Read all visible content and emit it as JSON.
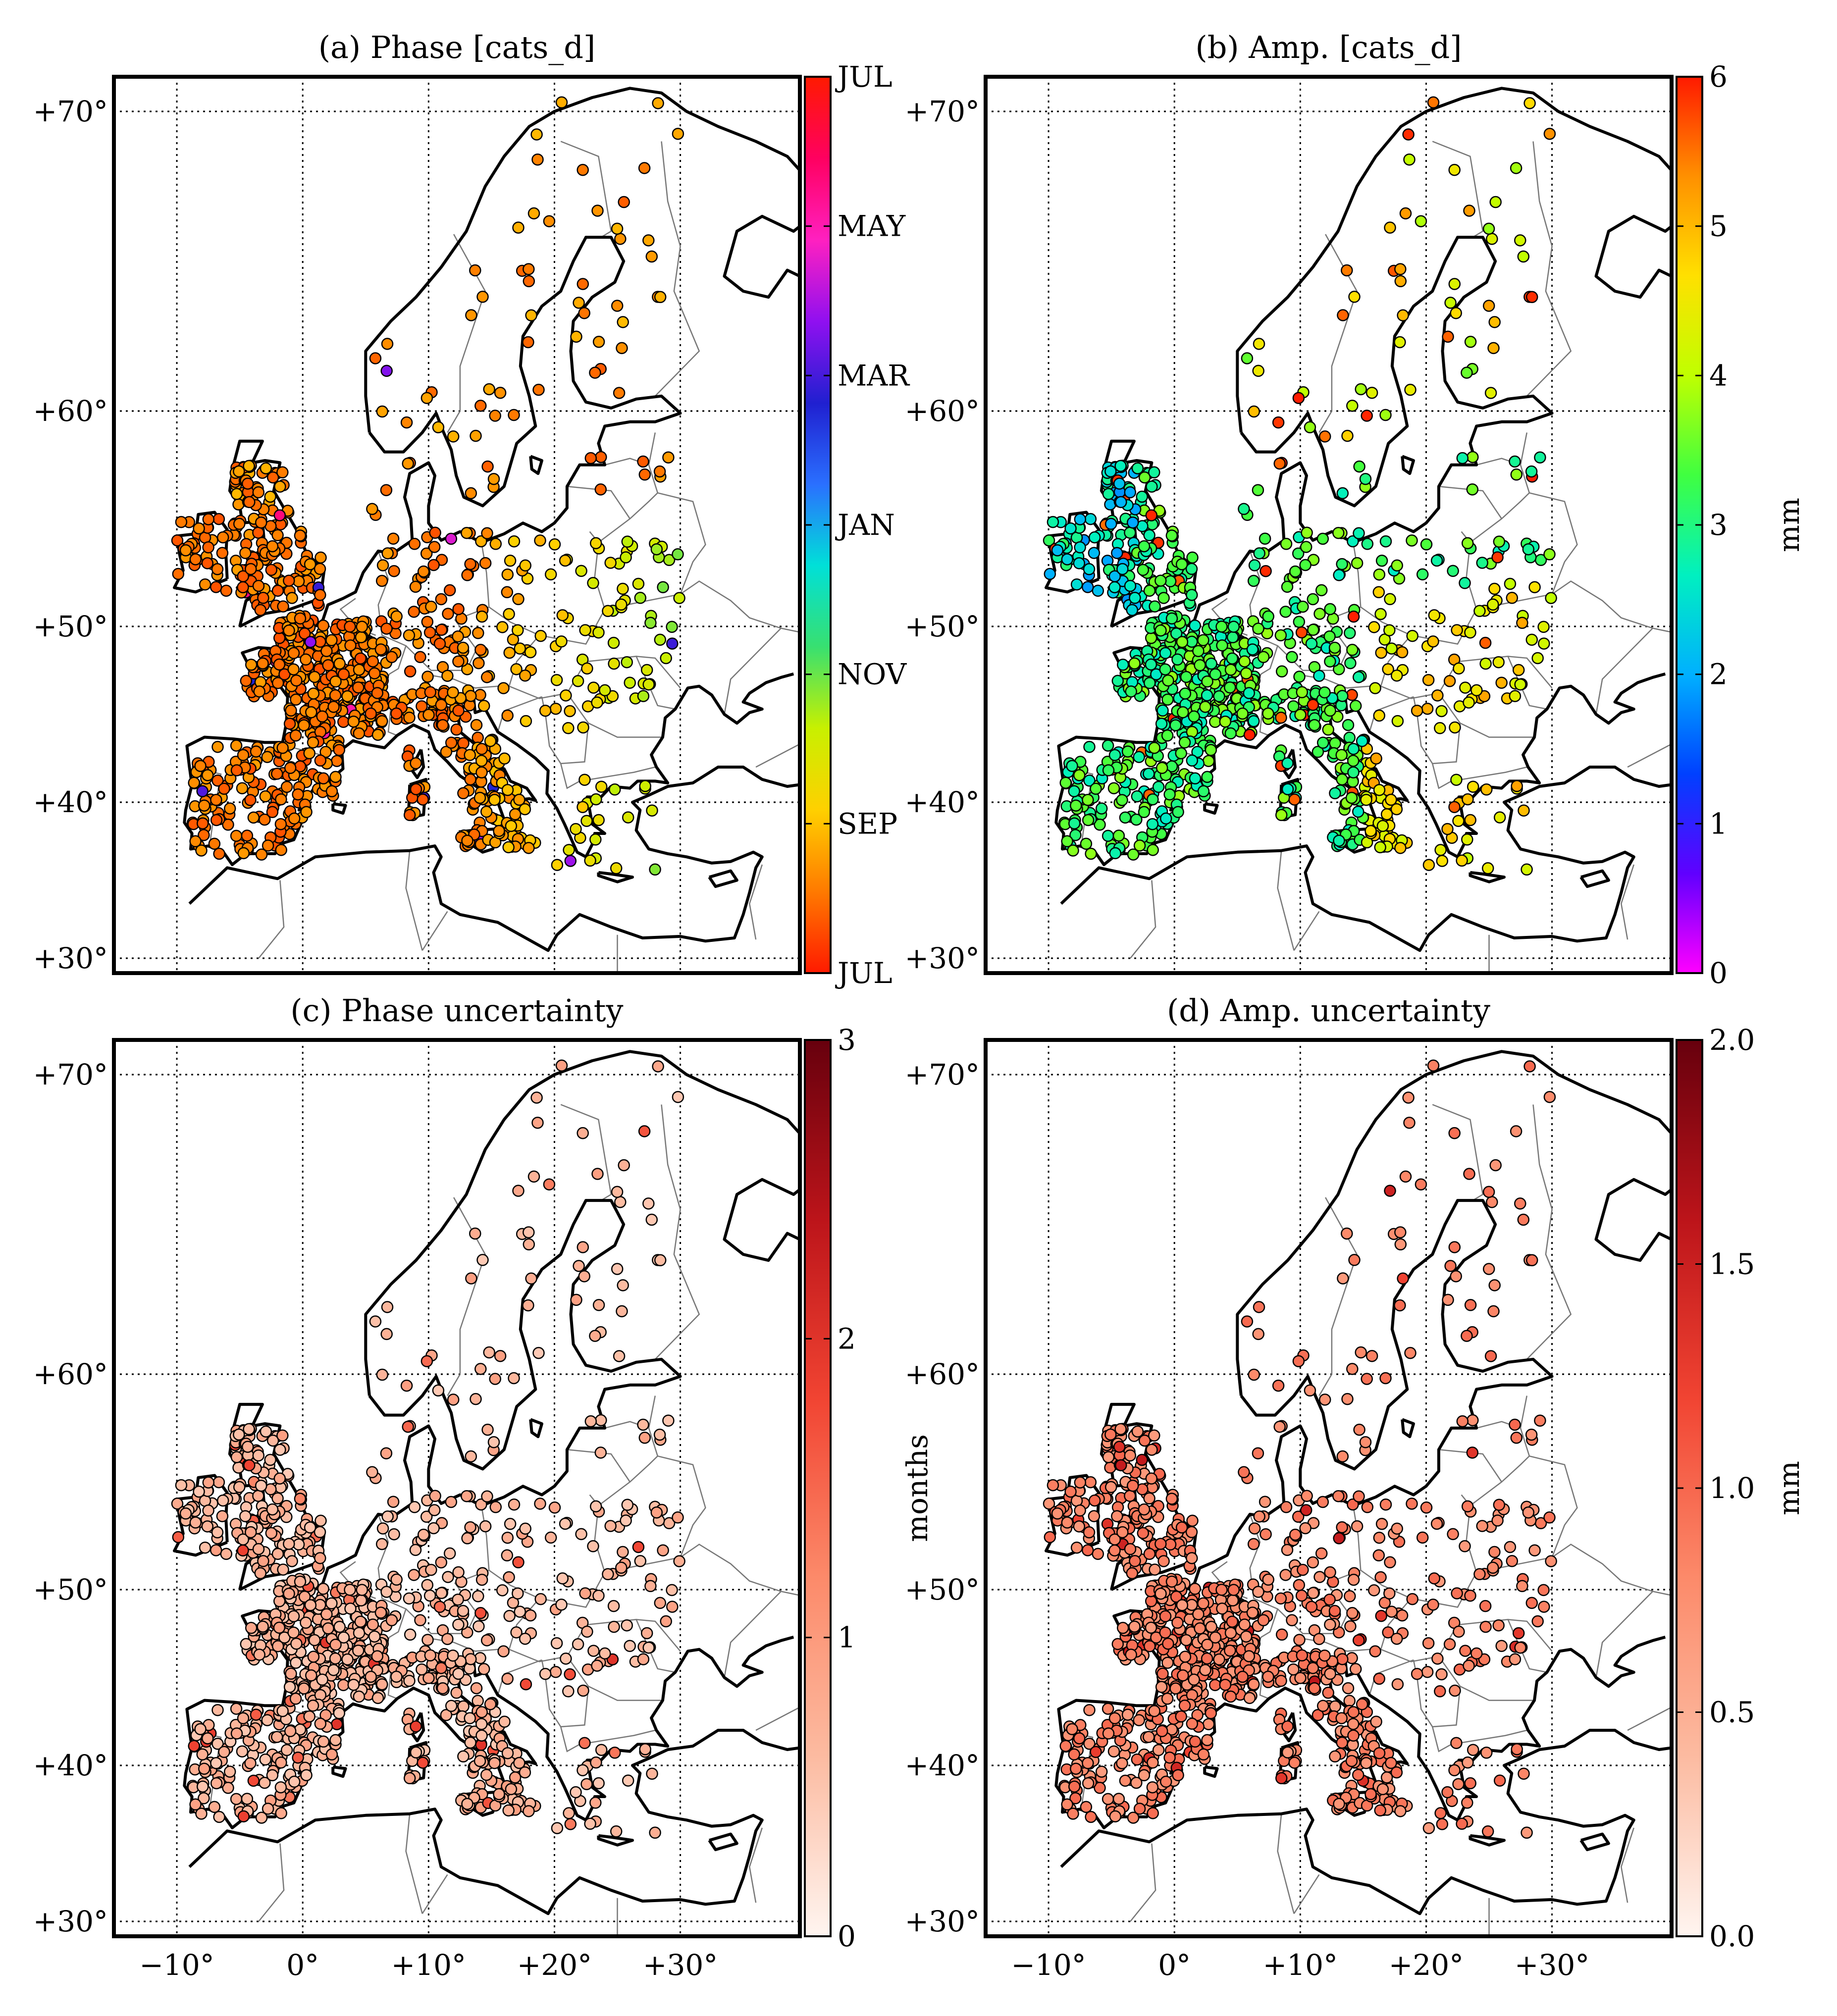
{
  "panels": [
    {
      "id": "a",
      "title": "(a) Phase [cats_d]",
      "colorbar": {
        "type": "cyclic",
        "ticks": [
          "JUL",
          "MAY",
          "MAR",
          "JAN",
          "NOV",
          "SEP",
          "JUL"
        ],
        "label": "",
        "colors": [
          "#ff1a00",
          "#ff7a00",
          "#ffd000",
          "#c8f000",
          "#38e070",
          "#00e0d8",
          "#2a70ff",
          "#2020d0",
          "#9010f0",
          "#ff20c0",
          "#ff0060",
          "#ff1a00"
        ]
      }
    },
    {
      "id": "b",
      "title": "(b) Amp. [cats_d]",
      "colorbar": {
        "type": "linear",
        "ticks": [
          "6",
          "5",
          "4",
          "3",
          "2",
          "1",
          "0"
        ],
        "label": "mm",
        "colors": [
          "#ff00ff",
          "#6000ff",
          "#0040ff",
          "#00b0ff",
          "#00f0c0",
          "#40ff40",
          "#c0ff00",
          "#ffe000",
          "#ff9000",
          "#ff1a00"
        ]
      }
    },
    {
      "id": "c",
      "title": "(c) Phase uncertainty",
      "colorbar": {
        "type": "linear",
        "ticks": [
          "3",
          "2",
          "1",
          "0"
        ],
        "label": "months",
        "colors": [
          "#fff5f0",
          "#fcbba1",
          "#fc8a6a",
          "#f14432",
          "#bc141a",
          "#67000d"
        ]
      }
    },
    {
      "id": "d",
      "title": "(d) Amp. uncertainty",
      "colorbar": {
        "type": "linear",
        "ticks": [
          "2.0",
          "1.5",
          "1.0",
          "0.5",
          "0.0"
        ],
        "label": "mm",
        "colors": [
          "#fff5f0",
          "#fcbba1",
          "#fc8a6a",
          "#f14432",
          "#bc141a",
          "#67000d"
        ]
      }
    }
  ],
  "map": {
    "lat_ticks": [
      "+70°",
      "+60°",
      "+50°",
      "+40°",
      "+30°"
    ],
    "lon_ticks": [
      "−10°",
      "0°",
      "+10°",
      "+20°",
      "+30°"
    ],
    "lat_values": [
      70,
      60,
      50,
      40,
      30
    ],
    "lon_values": [
      -10,
      0,
      10,
      20,
      30
    ]
  }
}
